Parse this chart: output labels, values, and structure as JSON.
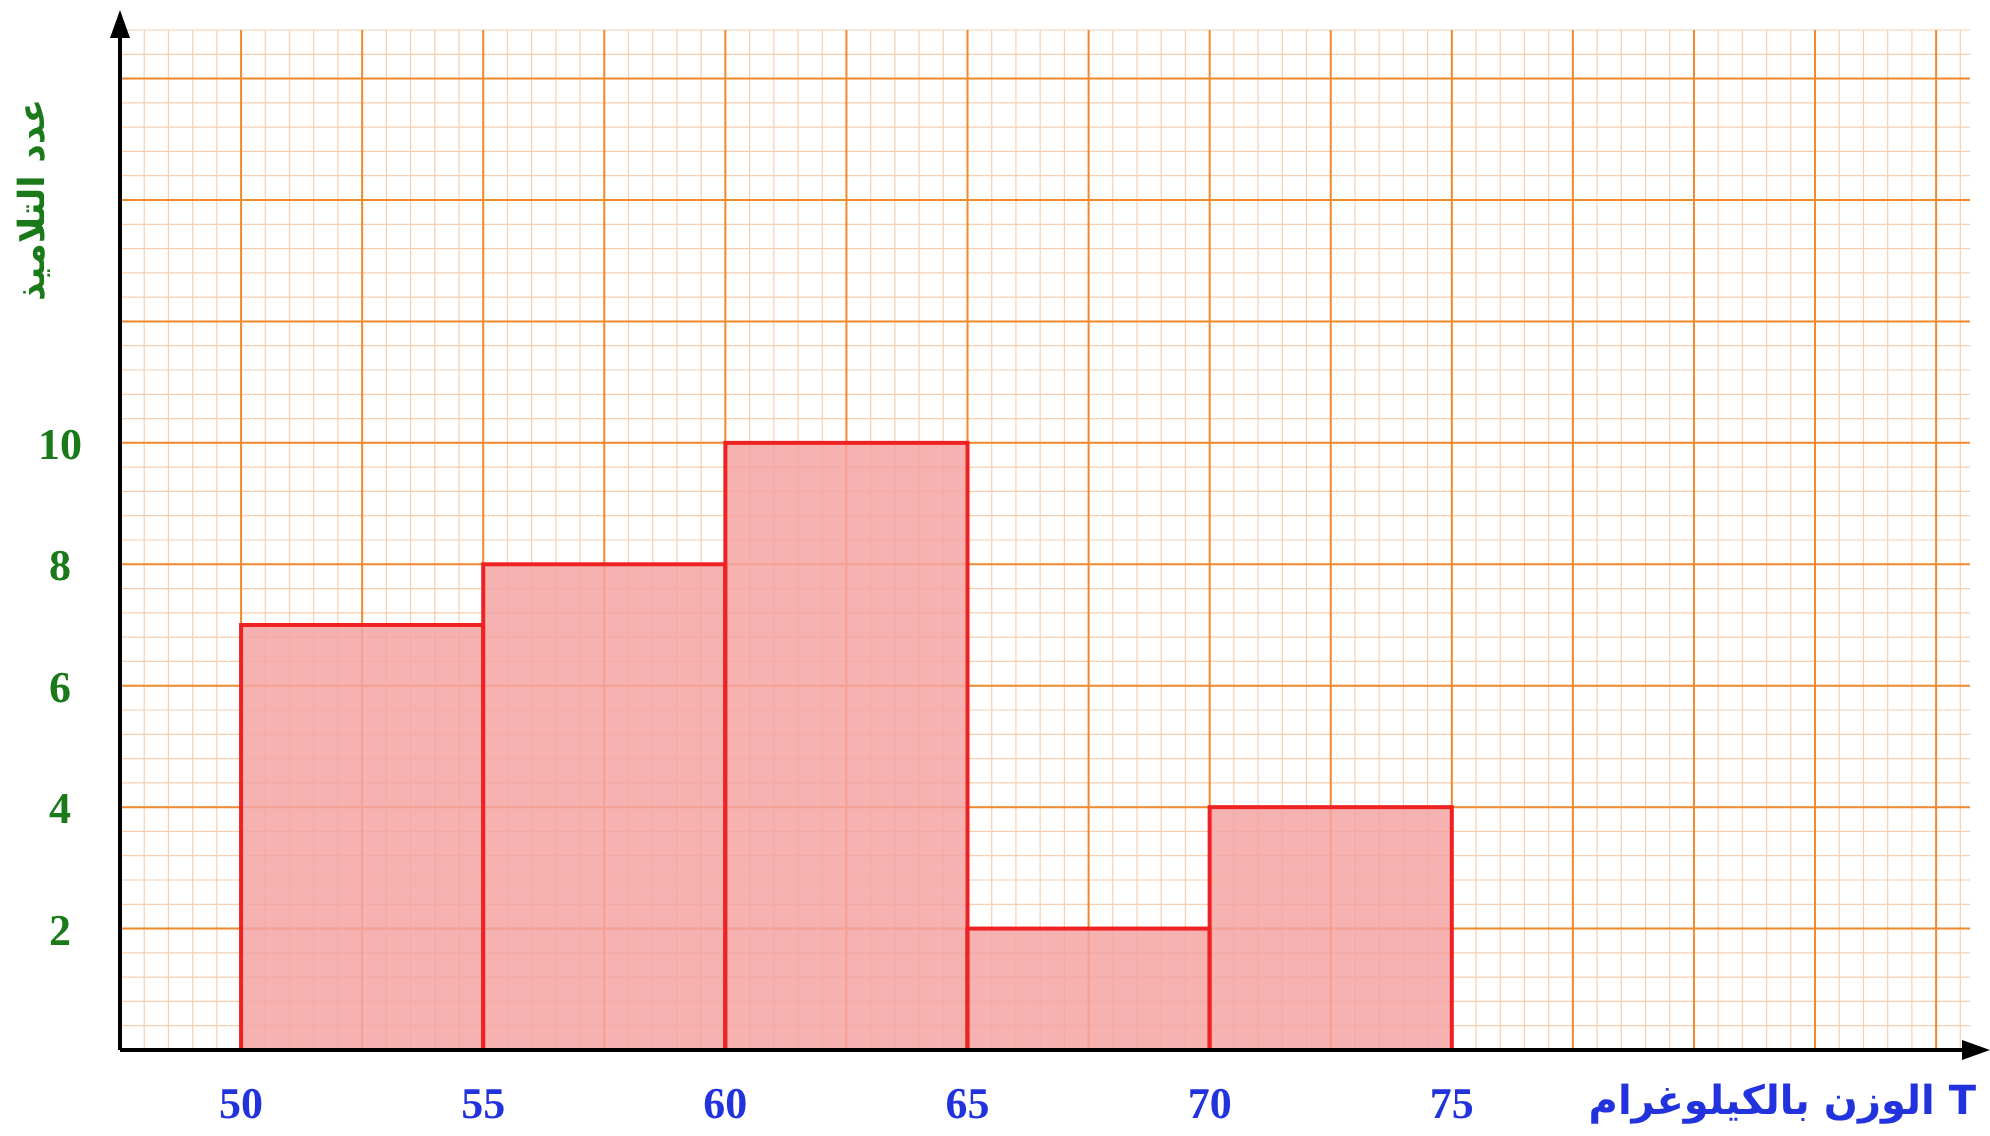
{
  "chart_data": {
    "type": "histogram",
    "xlabel": "الوزن بالكيلوغرام T",
    "ylabel": "عدد التلاميذ",
    "bins": [
      50,
      55,
      60,
      65,
      70,
      75
    ],
    "values": [
      7,
      8,
      10,
      2,
      4
    ],
    "color": "#f5a3a3",
    "xlim": [
      47.5,
      85.7
    ],
    "ylim": [
      0,
      16.8
    ],
    "xticks": [
      50,
      {
        "value": 52.5,
        "label": null
      },
      55,
      {
        "value": 57.5,
        "label": null
      },
      60,
      {
        "value": 62.5,
        "label": null
      },
      65,
      {
        "value": 67.5,
        "label": null
      },
      70,
      {
        "value": 72.5,
        "label": null
      },
      75,
      {
        "value": 77.5,
        "label": null
      },
      {
        "value": 80,
        "label": null
      },
      {
        "value": 82.5,
        "label": null
      },
      {
        "value": 85,
        "label": null
      }
    ],
    "yticks": [
      2,
      4,
      6,
      8,
      10,
      {
        "value": 12,
        "label": null
      },
      {
        "value": 14,
        "label": null
      },
      {
        "value": 16,
        "label": null
      }
    ],
    "grid": true
  }
}
